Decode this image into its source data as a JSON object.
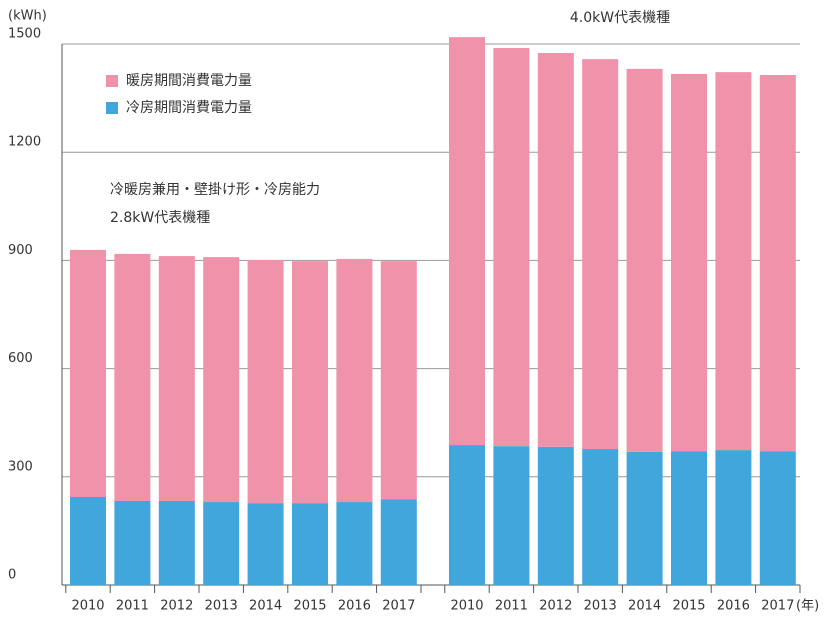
{
  "chart_data": {
    "type": "stacked_bar",
    "y_unit": "(kWh)",
    "x_unit": "(年)",
    "categories": [
      "2010",
      "2011",
      "2012",
      "2013",
      "2014",
      "2015",
      "2016",
      "2017",
      "2010",
      "2011",
      "2012",
      "2013",
      "2014",
      "2015",
      "2016",
      "2017"
    ],
    "series": [
      {
        "name": "冷房期間消費電力量",
        "color": "#40a6dc",
        "values": [
          244,
          233,
          233,
          230,
          227,
          227,
          230,
          238,
          388,
          385,
          383,
          377,
          369,
          371,
          374,
          371
        ]
      },
      {
        "name": "暖房期間消費電力量",
        "color": "#ef92aa",
        "values": [
          685,
          685,
          679,
          679,
          674,
          671,
          674,
          660,
          1131,
          1104,
          1092,
          1081,
          1062,
          1046,
          1048,
          1043
        ]
      }
    ],
    "annotations": [
      {
        "lines": [
          "冷暖房兼用・壁掛け形・冷房能力",
          "2.8kW代表機種"
        ]
      },
      {
        "lines": [
          "4.0kW代表機種"
        ]
      }
    ],
    "ylim": [
      0,
      1500
    ],
    "yticks": [
      0,
      300,
      600,
      900,
      1200,
      1500
    ],
    "grid": true
  }
}
